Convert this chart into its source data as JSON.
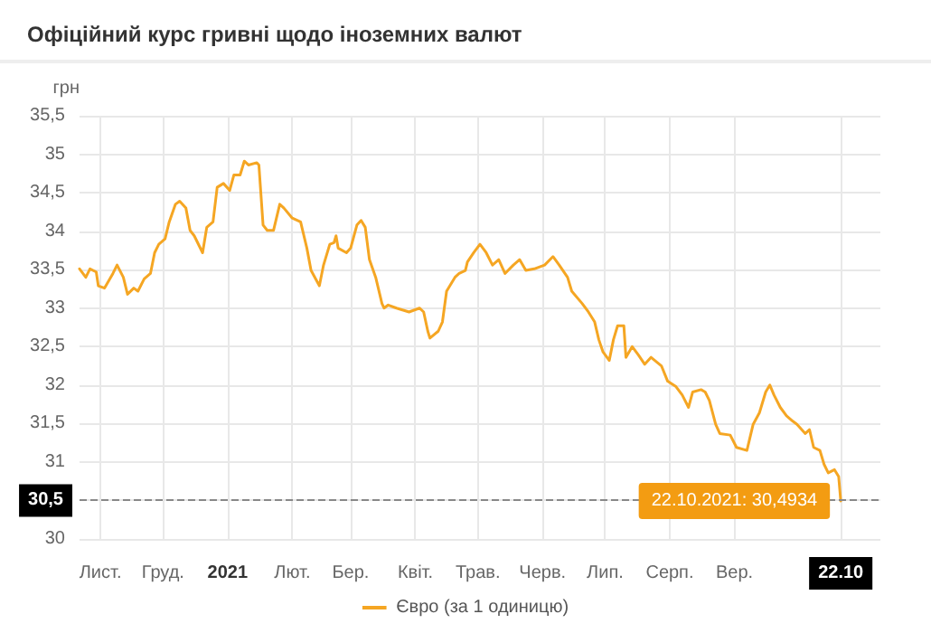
{
  "chart_data": {
    "type": "line",
    "title": "Офіційний курс гривні щодо іноземних валют",
    "ylabel": "грн",
    "x": [
      "2020-10-22",
      "2020-10-25",
      "2020-10-27",
      "2020-10-30",
      "2020-10-31",
      "2020-11-03",
      "2020-11-07",
      "2020-11-09",
      "2020-11-12",
      "2020-11-14",
      "2020-11-17",
      "2020-11-19",
      "2020-11-22",
      "2020-11-25",
      "2020-11-27",
      "2020-11-29",
      "2020-12-02",
      "2020-12-04",
      "2020-12-07",
      "2020-12-09",
      "2020-12-12",
      "2020-12-14",
      "2020-12-16",
      "2020-12-20",
      "2020-12-22",
      "2020-12-25",
      "2020-12-27",
      "2020-12-30",
      "2021-01-02",
      "2021-01-04",
      "2021-01-07",
      "2021-01-09",
      "2021-01-11",
      "2021-01-15",
      "2021-01-16",
      "2021-01-18",
      "2021-01-20",
      "2021-01-23",
      "2021-01-26",
      "2021-01-28",
      "2021-02-01",
      "2021-02-05",
      "2021-02-08",
      "2021-02-10",
      "2021-02-14",
      "2021-02-16",
      "2021-02-19",
      "2021-02-21",
      "2021-02-22",
      "2021-02-23",
      "2021-02-27",
      "2021-03-01",
      "2021-03-04",
      "2021-03-06",
      "2021-03-08",
      "2021-03-10",
      "2021-03-13",
      "2021-03-16",
      "2021-03-17",
      "2021-03-19",
      "2021-03-23",
      "2021-03-29",
      "2021-04-03",
      "2021-04-05",
      "2021-04-07",
      "2021-04-08",
      "2021-04-12",
      "2021-04-14",
      "2021-04-16",
      "2021-04-20",
      "2021-04-22",
      "2021-04-25",
      "2021-04-26",
      "2021-04-29",
      "2021-05-02",
      "2021-05-05",
      "2021-05-08",
      "2021-05-11",
      "2021-05-14",
      "2021-05-18",
      "2021-05-21",
      "2021-05-24",
      "2021-05-28",
      "2021-06-02",
      "2021-06-06",
      "2021-06-09",
      "2021-06-13",
      "2021-06-15",
      "2021-06-20",
      "2021-06-23",
      "2021-06-26",
      "2021-06-28",
      "2021-06-30",
      "2021-07-03",
      "2021-07-05",
      "2021-07-07",
      "2021-07-10",
      "2021-07-11",
      "2021-07-14",
      "2021-07-17",
      "2021-07-20",
      "2021-07-23",
      "2021-07-28",
      "2021-07-31",
      "2021-08-04",
      "2021-08-07",
      "2021-08-10",
      "2021-08-12",
      "2021-08-16",
      "2021-08-18",
      "2021-08-20",
      "2021-08-23",
      "2021-08-25",
      "2021-08-30",
      "2021-09-02",
      "2021-09-07",
      "2021-09-10",
      "2021-09-13",
      "2021-09-16",
      "2021-09-18",
      "2021-09-20",
      "2021-09-23",
      "2021-09-26",
      "2021-09-29",
      "2021-10-01",
      "2021-10-05",
      "2021-10-07",
      "2021-10-09",
      "2021-10-12",
      "2021-10-14",
      "2021-10-16",
      "2021-10-19",
      "2021-10-21",
      "2021-10-22"
    ],
    "series": [
      {
        "name": "Євро (за 1 одиницю)",
        "color": "#f5a623",
        "values": [
          33.51,
          33.4,
          33.51,
          33.47,
          33.29,
          33.26,
          33.45,
          33.56,
          33.4,
          33.18,
          33.26,
          33.22,
          33.38,
          33.45,
          33.72,
          33.83,
          33.9,
          34.12,
          34.35,
          34.39,
          34.3,
          34.01,
          33.94,
          33.72,
          34.05,
          34.12,
          34.57,
          34.62,
          34.53,
          34.73,
          34.73,
          34.91,
          34.86,
          34.89,
          34.86,
          34.08,
          34.01,
          34.01,
          34.35,
          34.3,
          34.17,
          34.12,
          33.78,
          33.49,
          33.29,
          33.56,
          33.83,
          33.85,
          33.94,
          33.78,
          33.72,
          33.78,
          34.08,
          34.14,
          34.05,
          33.63,
          33.4,
          33.06,
          33.0,
          33.04,
          33.0,
          32.95,
          33.0,
          32.95,
          32.7,
          32.61,
          32.7,
          32.82,
          33.22,
          33.4,
          33.45,
          33.49,
          33.6,
          33.72,
          33.83,
          33.72,
          33.56,
          33.63,
          33.45,
          33.56,
          33.63,
          33.49,
          33.51,
          33.56,
          33.67,
          33.56,
          33.4,
          33.22,
          33.06,
          32.95,
          32.82,
          32.59,
          32.43,
          32.32,
          32.59,
          32.77,
          32.77,
          32.36,
          32.5,
          32.39,
          32.27,
          32.36,
          32.25,
          32.05,
          31.98,
          31.87,
          31.71,
          31.91,
          31.94,
          31.91,
          31.8,
          31.49,
          31.37,
          31.35,
          31.19,
          31.15,
          31.49,
          31.64,
          31.91,
          32.0,
          31.87,
          31.71,
          31.6,
          31.53,
          31.49,
          31.37,
          31.42,
          31.19,
          31.15,
          30.97,
          30.86,
          30.9,
          30.81,
          30.4934
        ]
      }
    ],
    "xlim": [
      "2020-10-22",
      "2021-11-10"
    ],
    "xticks": [
      {
        "value": "2020-11-01",
        "label": "Лист."
      },
      {
        "value": "2020-12-01",
        "label": "Груд."
      },
      {
        "value": "2021-01-01",
        "label": "2021"
      },
      {
        "value": "2021-02-01",
        "label": "Лют."
      },
      {
        "value": "2021-03-01",
        "label": "Бер."
      },
      {
        "value": "2021-04-01",
        "label": "Квіт."
      },
      {
        "value": "2021-05-01",
        "label": "Трав."
      },
      {
        "value": "2021-06-01",
        "label": "Черв."
      },
      {
        "value": "2021-07-01",
        "label": "Лип."
      },
      {
        "value": "2021-08-01",
        "label": "Серп."
      },
      {
        "value": "2021-09-01",
        "label": "Вер."
      },
      {
        "value": "2021-10-22",
        "label": "22.10"
      }
    ],
    "ylim": [
      30,
      35.5
    ],
    "yticks": [
      30,
      {
        "value": 30.5,
        "label": null
      },
      31,
      {
        "value": 31.5,
        "label": "31,5"
      },
      32,
      {
        "value": 32.5,
        "label": "32,5"
      },
      33,
      {
        "value": 33.5,
        "label": "33,5"
      },
      34,
      {
        "value": 34.5,
        "label": "34,5"
      },
      35,
      {
        "value": 35.5,
        "label": "35,5"
      }
    ],
    "ref_lines": [
      {
        "axis": "y",
        "value": 30.5,
        "label": "30,5",
        "line_style": "dashed"
      }
    ],
    "annotations": [
      {
        "text": "22.10.2021: 30,4934",
        "x": "2021-10-22",
        "y": 30.4934
      }
    ],
    "grid": true,
    "legend": "bottom",
    "marker": "none",
    "line_style": "solid"
  }
}
